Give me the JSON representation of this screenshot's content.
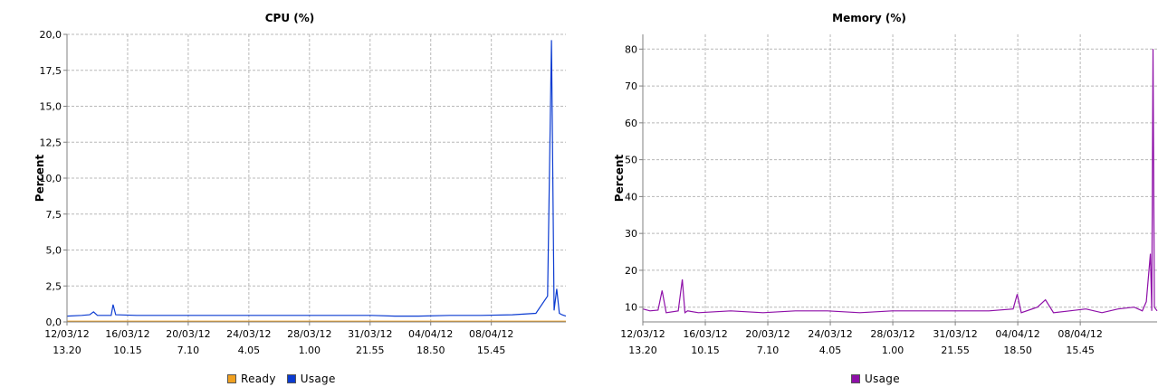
{
  "charts": {
    "cpu": {
      "title": "CPU (%)",
      "ylabel": "Percent",
      "legend": [
        {
          "label": "Ready",
          "color": "#f0a020"
        },
        {
          "label": "Usage",
          "color": "#0b3bd1"
        }
      ]
    },
    "memory": {
      "title": "Memory (%)",
      "ylabel": "Percent",
      "legend": [
        {
          "label": "Usage",
          "color": "#8e0fa8"
        }
      ]
    }
  },
  "chart_data": [
    {
      "type": "line",
      "title": "CPU (%)",
      "ylabel": "Percent",
      "xlabel": "",
      "ylim": [
        0,
        20
      ],
      "grid": true,
      "legend_position": "bottom",
      "yticks": [
        "0,0",
        "2,5",
        "5,0",
        "7,5",
        "10,0",
        "12,5",
        "15,0",
        "17,5",
        "20,0"
      ],
      "ytick_values": [
        0,
        2.5,
        5,
        7.5,
        10,
        12.5,
        15,
        17.5,
        20
      ],
      "xticks": [
        {
          "date": "12/03/12",
          "time": "13.20"
        },
        {
          "date": "16/03/12",
          "time": "10.15"
        },
        {
          "date": "20/03/12",
          "time": "7.10"
        },
        {
          "date": "24/03/12",
          "time": "4.05"
        },
        {
          "date": "28/03/12",
          "time": "1.00"
        },
        {
          "date": "31/03/12",
          "time": "21.55"
        },
        {
          "date": "04/04/12",
          "time": "18.50"
        },
        {
          "date": "08/04/12",
          "time": "15.45"
        }
      ],
      "x_range": [
        "2012-03-12 13:20",
        "2012-04-13 10:00"
      ],
      "series": [
        {
          "name": "Ready",
          "color": "#f0a020",
          "x": [
            "2012-03-12 13:20",
            "2012-04-13 10:00"
          ],
          "y": [
            0.05,
            0.05
          ]
        },
        {
          "name": "Usage",
          "color": "#0b3bd1",
          "x": [
            "2012-03-12 13:20",
            "2012-03-13 12:00",
            "2012-03-14 00:00",
            "2012-03-14 06:00",
            "2012-03-14 12:00",
            "2012-03-15 09:00",
            "2012-03-15 12:00",
            "2012-03-15 16:00",
            "2012-03-17 00:00",
            "2012-03-20 00:00",
            "2012-03-23 00:00",
            "2012-03-26 00:00",
            "2012-03-29 00:00",
            "2012-04-01 00:00",
            "2012-04-02 12:00",
            "2012-04-04 00:00",
            "2012-04-06 00:00",
            "2012-04-08 00:00",
            "2012-04-10 00:00",
            "2012-04-11 12:00",
            "2012-04-12 06:00",
            "2012-04-12 12:00",
            "2012-04-12 16:00",
            "2012-04-12 20:00",
            "2012-04-13 00:00",
            "2012-04-13 04:00",
            "2012-04-13 10:00"
          ],
          "y": [
            0.4,
            0.45,
            0.5,
            0.7,
            0.45,
            0.45,
            1.2,
            0.5,
            0.45,
            0.45,
            0.45,
            0.45,
            0.45,
            0.45,
            0.4,
            0.4,
            0.45,
            0.45,
            0.5,
            0.6,
            1.8,
            19.6,
            0.8,
            2.3,
            0.6,
            0.5,
            0.4
          ]
        }
      ]
    },
    {
      "type": "line",
      "title": "Memory (%)",
      "ylabel": "Percent",
      "xlabel": "",
      "ylim": [
        6,
        84
      ],
      "grid": true,
      "legend_position": "bottom",
      "yticks": [
        "10",
        "20",
        "30",
        "40",
        "50",
        "60",
        "70",
        "80"
      ],
      "ytick_values": [
        10,
        20,
        30,
        40,
        50,
        60,
        70,
        80
      ],
      "xticks": [
        {
          "date": "12/03/12",
          "time": "13.20"
        },
        {
          "date": "16/03/12",
          "time": "10.15"
        },
        {
          "date": "20/03/12",
          "time": "7.10"
        },
        {
          "date": "24/03/12",
          "time": "4.05"
        },
        {
          "date": "28/03/12",
          "time": "1.00"
        },
        {
          "date": "31/03/12",
          "time": "21.55"
        },
        {
          "date": "04/04/12",
          "time": "18.50"
        },
        {
          "date": "08/04/12",
          "time": "15.45"
        }
      ],
      "x_range": [
        "2012-03-12 13:20",
        "2012-04-13 10:00"
      ],
      "series": [
        {
          "name": "Usage",
          "color": "#8e0fa8",
          "x": [
            "2012-03-12 13:20",
            "2012-03-13 00:00",
            "2012-03-13 12:00",
            "2012-03-13 18:00",
            "2012-03-14 00:00",
            "2012-03-14 18:00",
            "2012-03-15 00:00",
            "2012-03-15 04:00",
            "2012-03-15 08:00",
            "2012-03-16 00:00",
            "2012-03-18 00:00",
            "2012-03-20 00:00",
            "2012-03-22 00:00",
            "2012-03-24 00:00",
            "2012-03-26 00:00",
            "2012-03-28 00:00",
            "2012-03-30 00:00",
            "2012-04-01 00:00",
            "2012-04-03 00:00",
            "2012-04-04 12:00",
            "2012-04-04 18:00",
            "2012-04-05 00:00",
            "2012-04-06 00:00",
            "2012-04-06 12:00",
            "2012-04-07 00:00",
            "2012-04-08 00:00",
            "2012-04-09 00:00",
            "2012-04-10 00:00",
            "2012-04-11 00:00",
            "2012-04-12 00:00",
            "2012-04-12 12:00",
            "2012-04-12 18:00",
            "2012-04-13 00:00",
            "2012-04-13 02:00",
            "2012-04-13 04:00",
            "2012-04-13 06:00",
            "2012-04-13 10:00"
          ],
          "y": [
            9.5,
            9,
            9.2,
            14.5,
            8.5,
            9,
            17.5,
            8.5,
            9,
            8.5,
            9,
            8.5,
            9,
            9,
            8.5,
            9,
            9,
            9,
            9,
            9.5,
            13.5,
            8.5,
            10,
            12,
            8.5,
            9,
            9.5,
            8.5,
            9.5,
            10,
            9,
            11.5,
            24.5,
            9,
            80,
            10,
            9
          ]
        }
      ]
    }
  ]
}
